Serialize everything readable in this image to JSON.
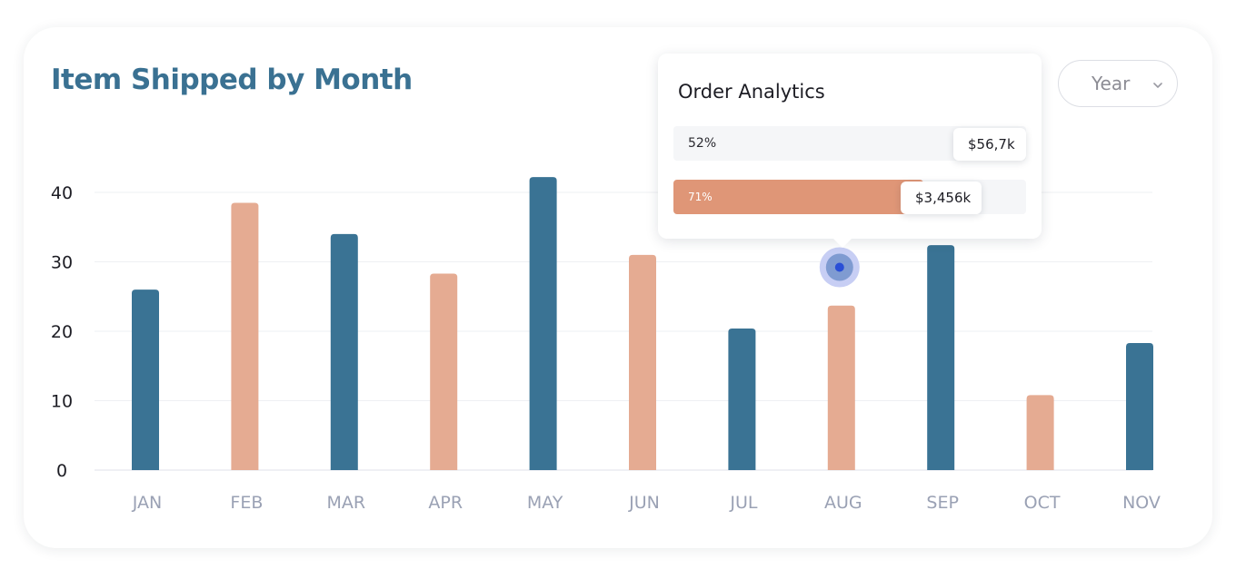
{
  "header": {
    "title": "Item Shipped by Month"
  },
  "period_filter": {
    "selected": "Year"
  },
  "tooltip": {
    "title": "Order Analytics",
    "rows": [
      {
        "percent_label": "52%",
        "value_label": "$56,7k",
        "fraction": 0.52,
        "color": "#f5f6f8"
      },
      {
        "percent_label": "71%",
        "value_label": "$3,456k",
        "fraction": 0.71,
        "color": "#df9677"
      }
    ]
  },
  "colors": {
    "blue": "#3a7394",
    "peach": "#e5ab92",
    "grid": "#eef0f3",
    "axis_text": "#9aa1b4",
    "marker": "#2a4fd6"
  },
  "chart_data": {
    "type": "bar",
    "title": "Item Shipped by Month",
    "xlabel": "",
    "ylabel": "",
    "ylim": [
      0,
      40
    ],
    "yticks": [
      0,
      10,
      20,
      30,
      40
    ],
    "grid": true,
    "categories": [
      "JAN",
      "FEB",
      "MAR",
      "APR",
      "MAY",
      "JUN",
      "JUL",
      "AUG",
      "SEP",
      "OCT",
      "NOV"
    ],
    "values": [
      26,
      38.5,
      34,
      28.3,
      42.2,
      31,
      20.4,
      23.7,
      32.4,
      10.8,
      18.3
    ],
    "bar_colors": [
      "blue",
      "peach",
      "blue",
      "peach",
      "blue",
      "peach",
      "blue",
      "peach",
      "blue",
      "peach",
      "blue"
    ],
    "marker": {
      "category": "AUG",
      "value": 28.3
    }
  }
}
